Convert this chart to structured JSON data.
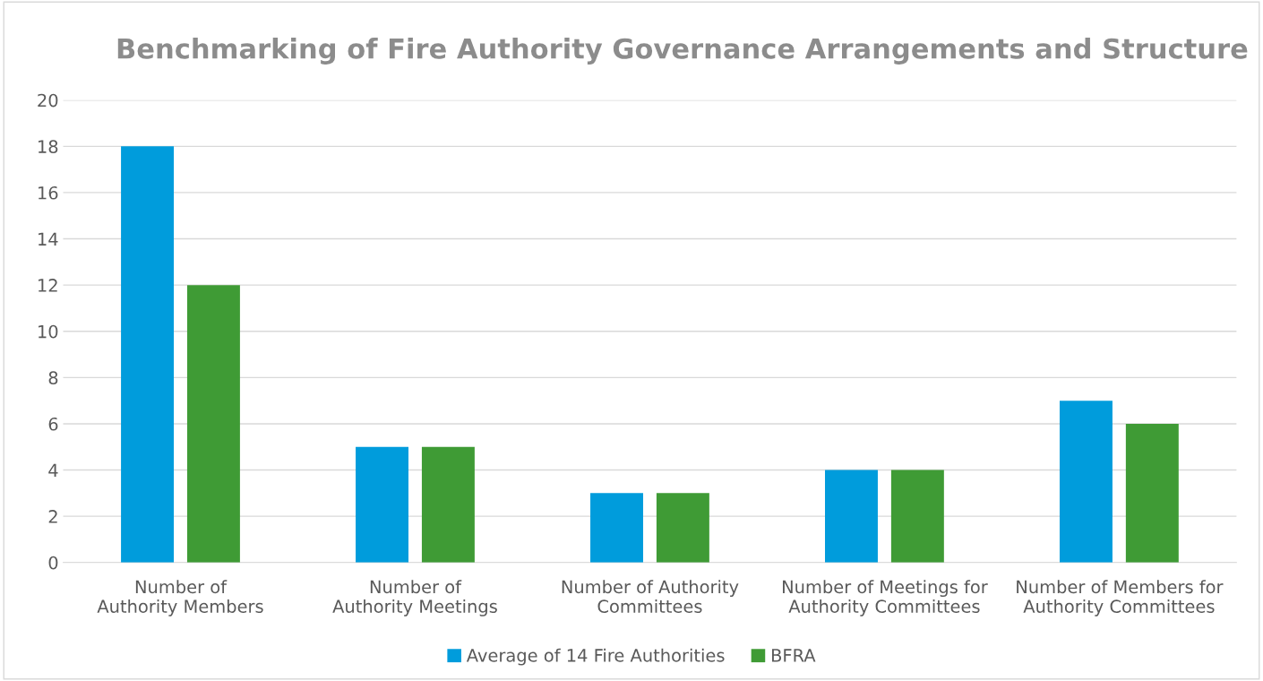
{
  "chart_data": {
    "type": "bar",
    "title": "Benchmarking of Fire Authority Governance Arrangements and Structure",
    "categories": [
      "Number of Authority Members",
      "Number of Authority Meetings",
      "Number of Authority Committees",
      "Number of Meetings for Authority Committees",
      "Number of Members for Authority Committees"
    ],
    "series": [
      {
        "name": "Average of 14 Fire Authorities",
        "color": "#009cdc",
        "values": [
          18,
          5,
          3,
          4,
          7
        ]
      },
      {
        "name": "BFRA",
        "color": "#3f9b35",
        "values": [
          12,
          5,
          3,
          4,
          6
        ]
      }
    ],
    "ylim": [
      0,
      20
    ],
    "yticks": [
      0,
      2,
      4,
      6,
      8,
      10,
      12,
      14,
      16,
      18,
      20
    ],
    "grid": "y",
    "legend": "bottom"
  }
}
